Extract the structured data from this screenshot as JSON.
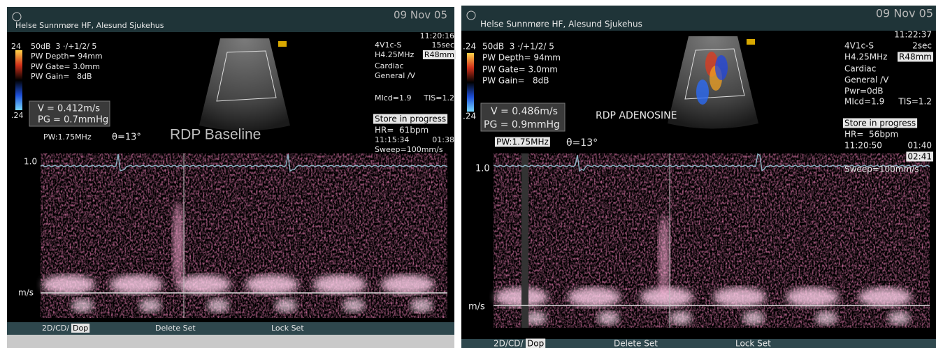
{
  "panels": [
    {
      "header": {
        "site": "Helse Sunnmøre HF, Alesund Sjukehus",
        "date": "09 Nov 05",
        "time": "11:20:16"
      },
      "scale": {
        "top": "24",
        "bottom": ".24"
      },
      "settings": [
        "50dB  3 ·/+1/2/ 5",
        "PW Depth= 94mm",
        "PW Gate= 3.0mm",
        "PW Gain=   8dB"
      ],
      "measurement": {
        "velocity": "V = 0.412m/s",
        "gradient": "PG = 0.7mmHg"
      },
      "label": "RDP Baseline",
      "pw": "PW:1.75MHz",
      "angle": "θ=13°",
      "probe": {
        "transducer": "4V1c-S",
        "duration": "15sec",
        "frequency": "H4.25MHz",
        "range": "R48mm",
        "preset": "Cardiac",
        "mode": "General /V",
        "mi": "MIcd=1.9",
        "tis": "TIS=1.2"
      },
      "status": {
        "store": "Store in progress",
        "hr": "HR=  61bpm",
        "clock": "11:15:34",
        "elapsed": "01:38",
        "sweep": "Sweep=100mm/s"
      },
      "axis": {
        "top": "1.0",
        "unit": "m/s"
      },
      "menu": [
        "2D/CD/",
        "Dop",
        "Delete Set",
        "Lock Set"
      ]
    },
    {
      "header": {
        "site": "Helse Sunnmøre HF, Alesund Sjukehus",
        "date": "09 Nov 05",
        "time": "11:22:37"
      },
      "scale": {
        "top": ".24",
        "bottom": ".24"
      },
      "settings": [
        "50dB  3 ·/+1/2/ 5",
        "PW Depth= 94mm",
        "PW Gate= 3.0mm",
        "PW Gain=   8dB"
      ],
      "measurement": {
        "velocity": "V = 0.486m/s",
        "gradient": "PG = 0.9mmHg"
      },
      "label": "RDP ADENOSINE",
      "pw": "PW:1.75MHz",
      "angle": "θ=13°",
      "probe": {
        "transducer": "4V1c-S",
        "duration": "2sec",
        "frequency": "H4.25MHz",
        "range": "R48mm",
        "preset": "Cardiac",
        "mode": "General /V",
        "power": "Pwr=0dB",
        "mi": "MIcd=1.9",
        "tis": "TIS=1.2"
      },
      "status": {
        "store": "Store in progress",
        "hr": "HR=  56bpm",
        "clock": "11:20:50",
        "elapsed": "01:40",
        "counter": "02:41",
        "sweep": "Sweep=100mm/s"
      },
      "axis": {
        "top": "1.0",
        "unit": "m/s"
      },
      "menu": [
        "2D/CD/",
        "Dop",
        "Delete Set",
        "Lock Set"
      ]
    }
  ]
}
